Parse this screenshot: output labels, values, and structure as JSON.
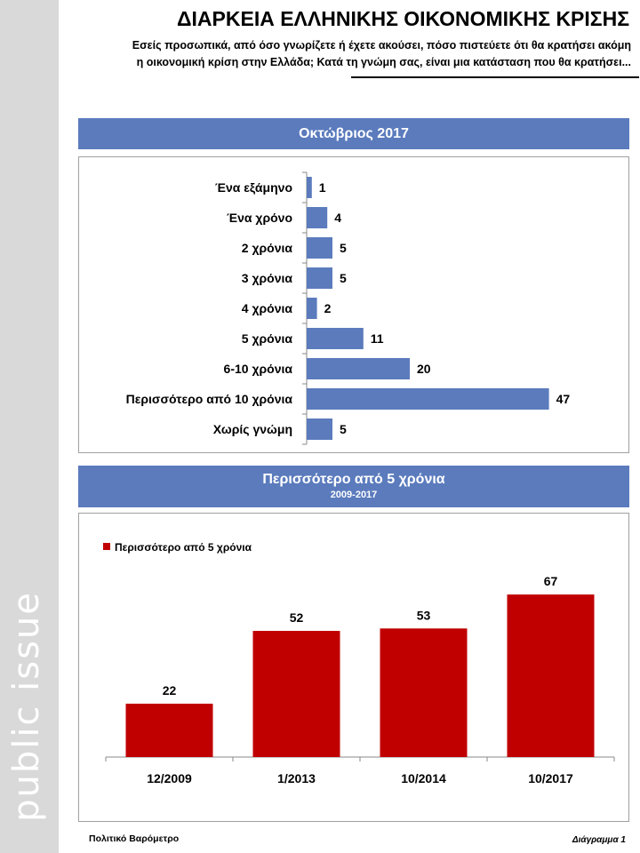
{
  "brand": {
    "logo_text": "public issue"
  },
  "header": {
    "title": "ΔΙΑΡΚΕΙΑ ΕΛΛΗΝΙΚΗΣ ΟΙΚΟΝΟΜΙΚΗΣ ΚΡΙΣΗΣ",
    "subtitle_line1": "Εσείς προσωπικά, από όσο γνωρίζετε ή έχετε ακούσει, πόσο πιστεύετε ότι θα κρατήσει ακόμη",
    "subtitle_line2": "η οικονομική κρίση στην Ελλάδα; Κατά τη γνώμη σας, είναι μια κατάσταση που θα κρατήσει..."
  },
  "footer": {
    "left": "Πολιτικό Βαρόμετρο",
    "right": "Διάγραμμα 1"
  },
  "colors": {
    "blue_bar": "#5b7bbd",
    "red_bar": "#c00000",
    "banner": "#5b7bbd"
  },
  "chart_data": [
    {
      "type": "bar",
      "orientation": "horizontal",
      "title": "Οκτώβριος 2017",
      "categories": [
        "Ένα εξάμηνο",
        "Ένα χρόνο",
        "2 χρόνια",
        "3 χρόνια",
        "4 χρόνια",
        "5 χρόνια",
        "6-10 χρόνια",
        "Περισσότερο από 10 χρόνια",
        "Χωρίς γνώμη"
      ],
      "values": [
        1,
        4,
        5,
        5,
        2,
        11,
        20,
        47,
        5
      ],
      "xlim": [
        0,
        50
      ]
    },
    {
      "type": "bar",
      "orientation": "vertical",
      "title": "Περισσότερο από 5 χρόνια",
      "subtitle": "2009-2017",
      "categories": [
        "12/2009",
        "1/2013",
        "10/2014",
        "10/2017"
      ],
      "series": [
        {
          "name": "Περισσότερο από 5 χρόνια",
          "values": [
            22,
            52,
            53,
            67
          ]
        }
      ],
      "ylim": [
        0,
        80
      ],
      "legend": "top-left"
    }
  ]
}
